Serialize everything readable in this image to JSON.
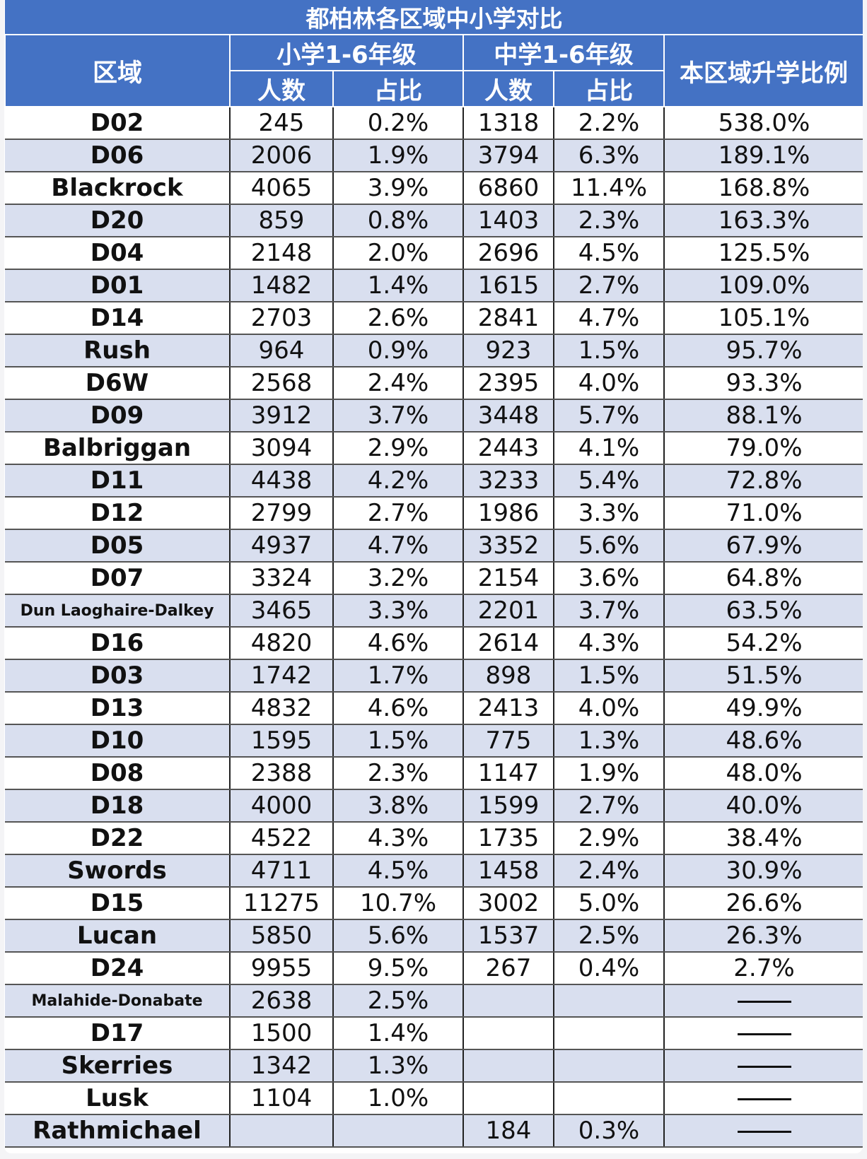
{
  "table": {
    "title": "都柏林各区域中小学对比",
    "headers": {
      "area": "区域",
      "primary": "小学1-6年级",
      "secondary": "中学1-6年级",
      "ratio": "本区域升学比例",
      "count": "人数",
      "share": "占比"
    },
    "rows": [
      {
        "area": "D02",
        "p_count": "245",
        "p_share": "0.2%",
        "s_count": "1318",
        "s_share": "2.2%",
        "ratio": "538.0%"
      },
      {
        "area": "D06",
        "p_count": "2006",
        "p_share": "1.9%",
        "s_count": "3794",
        "s_share": "6.3%",
        "ratio": "189.1%"
      },
      {
        "area": "Blackrock",
        "p_count": "4065",
        "p_share": "3.9%",
        "s_count": "6860",
        "s_share": "11.4%",
        "ratio": "168.8%"
      },
      {
        "area": "D20",
        "p_count": "859",
        "p_share": "0.8%",
        "s_count": "1403",
        "s_share": "2.3%",
        "ratio": "163.3%"
      },
      {
        "area": "D04",
        "p_count": "2148",
        "p_share": "2.0%",
        "s_count": "2696",
        "s_share": "4.5%",
        "ratio": "125.5%"
      },
      {
        "area": "D01",
        "p_count": "1482",
        "p_share": "1.4%",
        "s_count": "1615",
        "s_share": "2.7%",
        "ratio": "109.0%"
      },
      {
        "area": "D14",
        "p_count": "2703",
        "p_share": "2.6%",
        "s_count": "2841",
        "s_share": "4.7%",
        "ratio": "105.1%"
      },
      {
        "area": "Rush",
        "p_count": "964",
        "p_share": "0.9%",
        "s_count": "923",
        "s_share": "1.5%",
        "ratio": "95.7%"
      },
      {
        "area": "D6W",
        "p_count": "2568",
        "p_share": "2.4%",
        "s_count": "2395",
        "s_share": "4.0%",
        "ratio": "93.3%"
      },
      {
        "area": "D09",
        "p_count": "3912",
        "p_share": "3.7%",
        "s_count": "3448",
        "s_share": "5.7%",
        "ratio": "88.1%"
      },
      {
        "area": "Balbriggan",
        "p_count": "3094",
        "p_share": "2.9%",
        "s_count": "2443",
        "s_share": "4.1%",
        "ratio": "79.0%"
      },
      {
        "area": "D11",
        "p_count": "4438",
        "p_share": "4.2%",
        "s_count": "3233",
        "s_share": "5.4%",
        "ratio": "72.8%"
      },
      {
        "area": "D12",
        "p_count": "2799",
        "p_share": "2.7%",
        "s_count": "1986",
        "s_share": "3.3%",
        "ratio": "71.0%"
      },
      {
        "area": "D05",
        "p_count": "4937",
        "p_share": "4.7%",
        "s_count": "3352",
        "s_share": "5.6%",
        "ratio": "67.9%"
      },
      {
        "area": "D07",
        "p_count": "3324",
        "p_share": "3.2%",
        "s_count": "2154",
        "s_share": "3.6%",
        "ratio": "64.8%"
      },
      {
        "area": "Dun Laoghaire-Dalkey",
        "p_count": "3465",
        "p_share": "3.3%",
        "s_count": "2201",
        "s_share": "3.7%",
        "ratio": "63.5%"
      },
      {
        "area": "D16",
        "p_count": "4820",
        "p_share": "4.6%",
        "s_count": "2614",
        "s_share": "4.3%",
        "ratio": "54.2%"
      },
      {
        "area": "D03",
        "p_count": "1742",
        "p_share": "1.7%",
        "s_count": "898",
        "s_share": "1.5%",
        "ratio": "51.5%"
      },
      {
        "area": "D13",
        "p_count": "4832",
        "p_share": "4.6%",
        "s_count": "2413",
        "s_share": "4.0%",
        "ratio": "49.9%"
      },
      {
        "area": "D10",
        "p_count": "1595",
        "p_share": "1.5%",
        "s_count": "775",
        "s_share": "1.3%",
        "ratio": "48.6%"
      },
      {
        "area": "D08",
        "p_count": "2388",
        "p_share": "2.3%",
        "s_count": "1147",
        "s_share": "1.9%",
        "ratio": "48.0%"
      },
      {
        "area": "D18",
        "p_count": "4000",
        "p_share": "3.8%",
        "s_count": "1599",
        "s_share": "2.7%",
        "ratio": "40.0%"
      },
      {
        "area": "D22",
        "p_count": "4522",
        "p_share": "4.3%",
        "s_count": "1735",
        "s_share": "2.9%",
        "ratio": "38.4%"
      },
      {
        "area": "Swords",
        "p_count": "4711",
        "p_share": "4.5%",
        "s_count": "1458",
        "s_share": "2.4%",
        "ratio": "30.9%"
      },
      {
        "area": "D15",
        "p_count": "11275",
        "p_share": "10.7%",
        "s_count": "3002",
        "s_share": "5.0%",
        "ratio": "26.6%"
      },
      {
        "area": "Lucan",
        "p_count": "5850",
        "p_share": "5.6%",
        "s_count": "1537",
        "s_share": "2.5%",
        "ratio": "26.3%"
      },
      {
        "area": "D24",
        "p_count": "9955",
        "p_share": "9.5%",
        "s_count": "267",
        "s_share": "0.4%",
        "ratio": "2.7%"
      },
      {
        "area": "Malahide-Donabate",
        "p_count": "2638",
        "p_share": "2.5%",
        "s_count": "",
        "s_share": "",
        "ratio": "—"
      },
      {
        "area": "D17",
        "p_count": "1500",
        "p_share": "1.4%",
        "s_count": "",
        "s_share": "",
        "ratio": "—"
      },
      {
        "area": "Skerries",
        "p_count": "1342",
        "p_share": "1.3%",
        "s_count": "",
        "s_share": "",
        "ratio": "—"
      },
      {
        "area": "Lusk",
        "p_count": "1104",
        "p_share": "1.0%",
        "s_count": "",
        "s_share": "",
        "ratio": "—"
      },
      {
        "area": "Rathmichael",
        "p_count": "",
        "p_share": "",
        "s_count": "184",
        "s_share": "0.3%",
        "ratio": "—"
      }
    ]
  }
}
